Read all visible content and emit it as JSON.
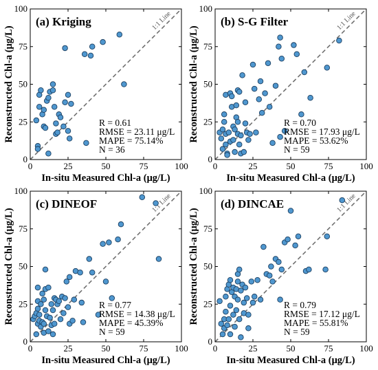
{
  "chart_data": [
    {
      "type": "scatter",
      "title": "(a) Kriging",
      "xlabel": "In-situ Measured Chl-a (μg/L)",
      "ylabel": "Reconstructed Chl-a (μg/L)",
      "xlim": [
        0,
        100
      ],
      "ylim": [
        0,
        100
      ],
      "xticks": [
        "0",
        "25",
        "50",
        "75",
        "100"
      ],
      "yticks": [
        "0",
        "25",
        "50",
        "75",
        "100"
      ],
      "reference_line": "1:1 Line",
      "stats": [
        "R = 0.61",
        "RMSE = 23.11 μg/L",
        "MAPE = 75.14%",
        "N = 36"
      ],
      "points": [
        [
          4,
          26
        ],
        [
          5,
          9
        ],
        [
          6,
          43
        ],
        [
          6,
          35
        ],
        [
          7,
          46
        ],
        [
          8,
          30
        ],
        [
          9,
          33
        ],
        [
          9,
          22
        ],
        [
          10,
          21
        ],
        [
          5,
          7
        ],
        [
          11,
          39
        ],
        [
          12,
          41
        ],
        [
          12,
          4
        ],
        [
          13,
          45
        ],
        [
          15,
          50
        ],
        [
          15,
          46
        ],
        [
          16,
          35
        ],
        [
          17,
          17
        ],
        [
          17,
          24
        ],
        [
          18,
          18
        ],
        [
          19,
          30
        ],
        [
          20,
          28
        ],
        [
          22,
          22
        ],
        [
          23,
          74
        ],
        [
          23,
          38
        ],
        [
          25,
          43
        ],
        [
          25,
          19
        ],
        [
          26,
          14
        ],
        [
          27,
          37
        ],
        [
          36,
          70
        ],
        [
          37,
          11
        ],
        [
          40,
          69
        ],
        [
          41,
          75
        ],
        [
          48,
          78
        ],
        [
          59,
          83
        ],
        [
          62,
          50
        ]
      ]
    },
    {
      "type": "scatter",
      "title": "(b) S-G Filter",
      "xlabel": "In-situ Measured Chl-a (μg/L)",
      "ylabel": "Reconstructed Chl-a (μg/L)",
      "xlim": [
        0,
        100
      ],
      "ylim": [
        0,
        100
      ],
      "xticks": [
        "0",
        "25",
        "50",
        "75",
        "100"
      ],
      "yticks": [
        "0",
        "25",
        "50",
        "75",
        "100"
      ],
      "reference_line": "1:1 Line",
      "stats": [
        "R = 0.70",
        "RMSE = 17.93 μg/L",
        "MAPE = 53.62%",
        "N = 59"
      ],
      "points": [
        [
          3,
          18
        ],
        [
          4,
          14
        ],
        [
          5,
          20
        ],
        [
          5,
          7
        ],
        [
          6,
          30
        ],
        [
          6,
          25
        ],
        [
          7,
          43
        ],
        [
          7,
          17
        ],
        [
          7,
          10
        ],
        [
          8,
          4
        ],
        [
          8,
          3
        ],
        [
          9,
          18
        ],
        [
          10,
          44
        ],
        [
          10,
          12
        ],
        [
          11,
          42
        ],
        [
          11,
          35
        ],
        [
          12,
          22
        ],
        [
          12,
          13
        ],
        [
          13,
          20
        ],
        [
          13,
          5
        ],
        [
          14,
          36
        ],
        [
          14,
          28
        ],
        [
          15,
          46
        ],
        [
          15,
          25
        ],
        [
          15,
          17
        ],
        [
          16,
          45
        ],
        [
          16,
          10
        ],
        [
          17,
          16
        ],
        [
          17,
          4
        ],
        [
          18,
          56
        ],
        [
          19,
          5
        ],
        [
          20,
          38
        ],
        [
          20,
          24
        ],
        [
          21,
          18
        ],
        [
          22,
          13
        ],
        [
          23,
          17
        ],
        [
          25,
          63
        ],
        [
          26,
          47
        ],
        [
          27,
          18
        ],
        [
          29,
          40
        ],
        [
          30,
          52
        ],
        [
          31,
          31
        ],
        [
          33,
          44
        ],
        [
          35,
          64
        ],
        [
          36,
          35
        ],
        [
          38,
          11
        ],
        [
          40,
          49
        ],
        [
          42,
          75
        ],
        [
          43,
          81
        ],
        [
          44,
          67
        ],
        [
          46,
          19
        ],
        [
          52,
          76
        ],
        [
          54,
          70
        ],
        [
          57,
          30
        ],
        [
          59,
          58
        ],
        [
          63,
          41
        ],
        [
          74,
          61
        ],
        [
          82,
          79
        ],
        [
          43,
          15
        ]
      ]
    },
    {
      "type": "scatter",
      "title": "(c) DINEOF",
      "xlabel": "In-situ Measured Chl-a (μg/L)",
      "ylabel": "Reconstructed Chl-a (μg/L)",
      "xlim": [
        0,
        100
      ],
      "ylim": [
        0,
        100
      ],
      "xticks": [
        "0",
        "25",
        "50",
        "75",
        "100"
      ],
      "yticks": [
        "0",
        "25",
        "50",
        "75",
        "100"
      ],
      "reference_line": "1:1 Line",
      "stats": [
        "R = 0.77",
        "RMSE = 14.38 μg/L",
        "MAPE = 45.39%",
        "N = 59"
      ],
      "points": [
        [
          2,
          15
        ],
        [
          3,
          17
        ],
        [
          4,
          5
        ],
        [
          4,
          19
        ],
        [
          5,
          12
        ],
        [
          5,
          22
        ],
        [
          5,
          27
        ],
        [
          5,
          36
        ],
        [
          6,
          14
        ],
        [
          6,
          18
        ],
        [
          7,
          25
        ],
        [
          7,
          10
        ],
        [
          8,
          13
        ],
        [
          8,
          32
        ],
        [
          9,
          28
        ],
        [
          9,
          12
        ],
        [
          9,
          6
        ],
        [
          10,
          48
        ],
        [
          10,
          35
        ],
        [
          10,
          21
        ],
        [
          11,
          17
        ],
        [
          12,
          36
        ],
        [
          12,
          7
        ],
        [
          13,
          16
        ],
        [
          14,
          11
        ],
        [
          14,
          25
        ],
        [
          15,
          5
        ],
        [
          15,
          21
        ],
        [
          16,
          12
        ],
        [
          16,
          29
        ],
        [
          17,
          28
        ],
        [
          18,
          25
        ],
        [
          19,
          27
        ],
        [
          20,
          15
        ],
        [
          21,
          30
        ],
        [
          22,
          19
        ],
        [
          23,
          29
        ],
        [
          24,
          40
        ],
        [
          25,
          23
        ],
        [
          26,
          12
        ],
        [
          26,
          43
        ],
        [
          28,
          14
        ],
        [
          29,
          28
        ],
        [
          30,
          47
        ],
        [
          33,
          46
        ],
        [
          34,
          26
        ],
        [
          35,
          13
        ],
        [
          39,
          55
        ],
        [
          41,
          46
        ],
        [
          45,
          18
        ],
        [
          48,
          65
        ],
        [
          50,
          40
        ],
        [
          52,
          66
        ],
        [
          54,
          29
        ],
        [
          58,
          68
        ],
        [
          60,
          78
        ],
        [
          74,
          96
        ],
        [
          83,
          92
        ],
        [
          85,
          55
        ]
      ]
    },
    {
      "type": "scatter",
      "title": "(d) DINCAE",
      "xlabel": "In-situ Measured Chl-a (μg/L)",
      "ylabel": "Reconstructed Chl-a (μg/L)",
      "xlim": [
        0,
        100
      ],
      "ylim": [
        0,
        100
      ],
      "xticks": [
        "0",
        "25",
        "50",
        "75",
        "100"
      ],
      "yticks": [
        "0",
        "25",
        "50",
        "75",
        "100"
      ],
      "reference_line": "1:1 Line",
      "stats": [
        "R = 0.79",
        "RMSE = 17.12 μg/L",
        "MAPE = 55.81%",
        "N = 59"
      ],
      "points": [
        [
          3,
          27
        ],
        [
          4,
          12
        ],
        [
          5,
          5
        ],
        [
          6,
          15
        ],
        [
          6,
          9
        ],
        [
          7,
          30
        ],
        [
          7,
          20
        ],
        [
          8,
          35
        ],
        [
          8,
          11
        ],
        [
          9,
          38
        ],
        [
          9,
          15
        ],
        [
          10,
          41
        ],
        [
          10,
          24
        ],
        [
          10,
          5
        ],
        [
          11,
          33
        ],
        [
          12,
          36
        ],
        [
          12,
          18
        ],
        [
          13,
          10
        ],
        [
          13,
          30
        ],
        [
          14,
          35
        ],
        [
          14,
          21
        ],
        [
          15,
          45
        ],
        [
          15,
          40
        ],
        [
          15,
          28
        ],
        [
          16,
          48
        ],
        [
          16,
          15
        ],
        [
          17,
          34
        ],
        [
          17,
          3
        ],
        [
          18,
          38
        ],
        [
          19,
          26
        ],
        [
          19,
          19
        ],
        [
          20,
          36
        ],
        [
          21,
          29
        ],
        [
          22,
          9
        ],
        [
          22,
          18
        ],
        [
          24,
          40
        ],
        [
          25,
          26
        ],
        [
          26,
          30
        ],
        [
          28,
          41
        ],
        [
          30,
          28
        ],
        [
          32,
          63
        ],
        [
          34,
          45
        ],
        [
          36,
          44
        ],
        [
          37,
          50
        ],
        [
          38,
          40
        ],
        [
          40,
          55
        ],
        [
          42,
          53
        ],
        [
          43,
          28
        ],
        [
          44,
          48
        ],
        [
          46,
          66
        ],
        [
          48,
          68
        ],
        [
          50,
          87
        ],
        [
          53,
          64
        ],
        [
          55,
          70
        ],
        [
          60,
          47
        ],
        [
          62,
          48
        ],
        [
          73,
          48
        ],
        [
          74,
          70
        ],
        [
          84,
          94
        ]
      ]
    }
  ]
}
